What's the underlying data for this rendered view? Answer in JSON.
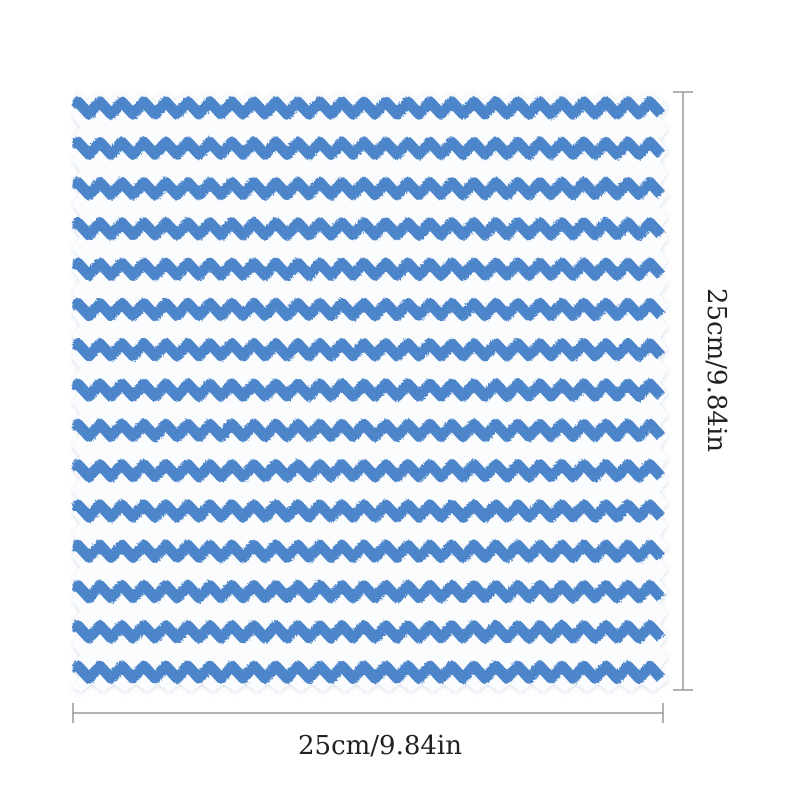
{
  "dimensions": {
    "width_label": "25cm/9.84in",
    "height_label": "25cm/9.84in"
  }
}
